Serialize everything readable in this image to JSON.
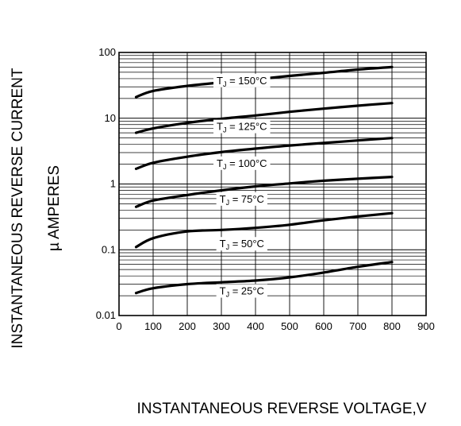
{
  "chart_data": {
    "type": "line",
    "ylabel_line1": "INSTANTANEOUS REVERSE CURRENT",
    "ylabel_line2": "µ AMPERES",
    "xlabel": "INSTANTANEOUS REVERSE VOLTAGE,V",
    "y_scale": "log",
    "ylim": [
      0.01,
      100
    ],
    "xlim": [
      0,
      900
    ],
    "grid": true,
    "x_ticks": [
      0,
      100,
      200,
      300,
      400,
      500,
      600,
      700,
      800,
      900
    ],
    "y_ticks": [
      {
        "value": 0.01,
        "label": "0.01"
      },
      {
        "value": 0.1,
        "label": "0.1"
      },
      {
        "value": 1,
        "label": "1"
      },
      {
        "value": 10,
        "label": "10"
      },
      {
        "value": 100,
        "label": "100"
      }
    ],
    "series": [
      {
        "name": "TJ = 150°C",
        "label_pre": "T",
        "label_sub": "J",
        "label_post": " = 150°C",
        "label_x": 360,
        "label_y": 38,
        "x": [
          50,
          100,
          200,
          300,
          400,
          500,
          600,
          700,
          800
        ],
        "y": [
          21,
          26,
          31,
          35,
          39,
          44,
          49,
          55,
          60
        ]
      },
      {
        "name": "TJ = 125°C",
        "label_pre": "T",
        "label_sub": "J",
        "label_post": " = 125°C",
        "label_x": 360,
        "label_y": 7.6,
        "x": [
          50,
          100,
          200,
          300,
          400,
          500,
          600,
          700,
          800
        ],
        "y": [
          6,
          7,
          8.5,
          9.8,
          11,
          12.5,
          14,
          15.5,
          17
        ]
      },
      {
        "name": "TJ = 100°C",
        "label_pre": "T",
        "label_sub": "J",
        "label_post": " = 100°C",
        "label_x": 360,
        "label_y": 2.1,
        "x": [
          50,
          100,
          200,
          300,
          400,
          500,
          600,
          700,
          800
        ],
        "y": [
          1.7,
          2.1,
          2.6,
          3.05,
          3.45,
          3.85,
          4.2,
          4.6,
          5
        ]
      },
      {
        "name": "TJ = 75°C",
        "label_pre": "T",
        "label_sub": "J",
        "label_post": " = 75°C",
        "label_x": 360,
        "label_y": 0.6,
        "x": [
          50,
          100,
          200,
          300,
          400,
          500,
          600,
          700,
          800
        ],
        "y": [
          0.45,
          0.56,
          0.68,
          0.8,
          0.92,
          1.02,
          1.12,
          1.2,
          1.28
        ]
      },
      {
        "name": "TJ = 50°C",
        "label_pre": "T",
        "label_sub": "J",
        "label_post": " = 50°C",
        "label_x": 360,
        "label_y": 0.125,
        "x": [
          50,
          100,
          200,
          300,
          400,
          500,
          600,
          700,
          800
        ],
        "y": [
          0.11,
          0.15,
          0.19,
          0.2,
          0.215,
          0.24,
          0.28,
          0.32,
          0.36
        ]
      },
      {
        "name": "TJ = 25°C",
        "label_pre": "T",
        "label_sub": "J",
        "label_post": " = 25°C",
        "label_x": 360,
        "label_y": 0.024,
        "x": [
          50,
          100,
          200,
          300,
          400,
          500,
          600,
          700,
          800
        ],
        "y": [
          0.022,
          0.026,
          0.03,
          0.032,
          0.034,
          0.038,
          0.045,
          0.055,
          0.065
        ]
      }
    ]
  }
}
